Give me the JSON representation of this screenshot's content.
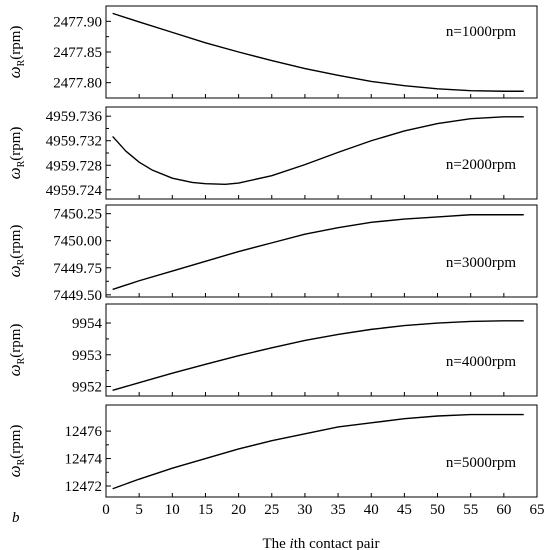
{
  "figure_label": "b",
  "xlabel_parts": [
    "The ",
    "i",
    "th contact pair"
  ],
  "ylabel": {
    "omega": "ω",
    "sub": "R",
    "unit": "(rpm)"
  },
  "x_ticks": [
    0,
    5,
    10,
    15,
    20,
    25,
    30,
    35,
    40,
    45,
    50,
    55,
    60,
    65
  ],
  "chart_data": [
    {
      "type": "line",
      "annotation": "n=1000rpm",
      "xlim": [
        0,
        65
      ],
      "ylim": [
        2477.775,
        2477.925
      ],
      "yticks": [
        2477.8,
        2477.85,
        2477.9
      ],
      "ytick_labels": [
        "2477.80",
        "2477.85",
        "2477.90"
      ],
      "x": [
        1,
        5,
        10,
        15,
        20,
        25,
        30,
        35,
        40,
        45,
        50,
        55,
        60,
        63
      ],
      "values": [
        2477.913,
        2477.899,
        2477.882,
        2477.865,
        2477.85,
        2477.836,
        2477.823,
        2477.812,
        2477.802,
        2477.795,
        2477.79,
        2477.787,
        2477.786,
        2477.786
      ]
    },
    {
      "type": "line",
      "annotation": "n=2000rpm",
      "xlim": [
        0,
        65
      ],
      "ylim": [
        4959.7225,
        4959.7375
      ],
      "yticks": [
        4959.724,
        4959.728,
        4959.732,
        4959.736
      ],
      "ytick_labels": [
        "4959.724",
        "4959.728",
        "4959.732",
        "4959.736"
      ],
      "x": [
        1,
        3,
        5,
        7,
        10,
        13,
        15,
        18,
        20,
        25,
        30,
        35,
        40,
        45,
        50,
        55,
        60,
        63
      ],
      "values": [
        4959.7327,
        4959.7303,
        4959.7285,
        4959.7272,
        4959.7259,
        4959.7252,
        4959.725,
        4959.7249,
        4959.7251,
        4959.7263,
        4959.7281,
        4959.7301,
        4959.732,
        4959.7336,
        4959.7348,
        4959.7356,
        4959.7359,
        4959.7359
      ]
    },
    {
      "type": "line",
      "annotation": "n=3000rpm",
      "xlim": [
        0,
        65
      ],
      "ylim": [
        7449.48,
        7450.33
      ],
      "yticks": [
        7449.5,
        7449.75,
        7450.0,
        7450.25
      ],
      "ytick_labels": [
        "7449.50",
        "7449.75",
        "7450.00",
        "7450.25"
      ],
      "x": [
        1,
        5,
        10,
        15,
        20,
        25,
        30,
        35,
        40,
        45,
        50,
        55,
        60,
        63
      ],
      "values": [
        7449.55,
        7449.63,
        7449.72,
        7449.81,
        7449.9,
        7449.98,
        7450.06,
        7450.12,
        7450.17,
        7450.2,
        7450.22,
        7450.24,
        7450.24,
        7450.24
      ]
    },
    {
      "type": "line",
      "annotation": "n=4000rpm",
      "xlim": [
        0,
        65
      ],
      "ylim": [
        9951.7,
        9954.6
      ],
      "yticks": [
        9952,
        9953,
        9954
      ],
      "ytick_labels": [
        "9952",
        "9953",
        "9954"
      ],
      "x": [
        1,
        5,
        10,
        15,
        20,
        25,
        30,
        35,
        40,
        45,
        50,
        55,
        60,
        63
      ],
      "values": [
        9951.88,
        9952.12,
        9952.42,
        9952.7,
        9952.97,
        9953.22,
        9953.45,
        9953.64,
        9953.8,
        9953.92,
        9954.0,
        9954.05,
        9954.07,
        9954.07
      ]
    },
    {
      "type": "line",
      "annotation": "n=5000rpm",
      "xlim": [
        0,
        65
      ],
      "ylim": [
        12471.2,
        12477.9
      ],
      "yticks": [
        12472,
        12474,
        12476
      ],
      "ytick_labels": [
        "12472",
        "12474",
        "12476"
      ],
      "x": [
        1,
        5,
        10,
        15,
        20,
        25,
        30,
        35,
        40,
        45,
        50,
        55,
        60,
        63
      ],
      "values": [
        12471.8,
        12472.5,
        12473.3,
        12474.0,
        12474.7,
        12475.3,
        12475.8,
        12476.3,
        12476.6,
        12476.9,
        12477.1,
        12477.2,
        12477.2,
        12477.2
      ]
    }
  ]
}
